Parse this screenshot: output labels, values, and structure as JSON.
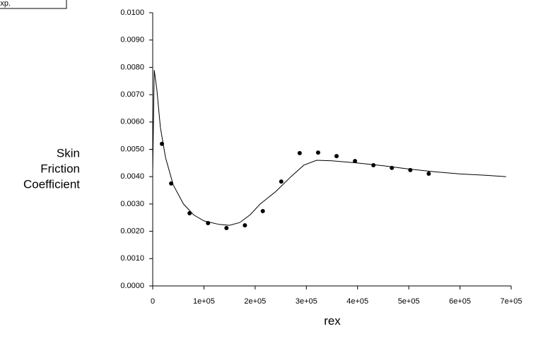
{
  "chart_data": {
    "type": "scatter",
    "xlabel": "rex",
    "ylabel": [
      "Skin",
      "Friction",
      "Coefficient"
    ],
    "xlim": [
      0,
      700000
    ],
    "ylim": [
      0,
      0.01
    ],
    "xticks": [
      0,
      {
        "value": 100000,
        "label": "1e+05"
      },
      {
        "value": 200000,
        "label": "2e+05"
      },
      {
        "value": 300000,
        "label": "3e+05"
      },
      {
        "value": 400000,
        "label": "4e+05"
      },
      {
        "value": 500000,
        "label": "5e+05"
      },
      {
        "value": 600000,
        "label": "6e+05"
      },
      {
        "value": 700000,
        "label": "7e+05"
      }
    ],
    "yticks": [
      {
        "value": 0,
        "label": "0.0000"
      },
      {
        "value": 0.001,
        "label": "0.0010"
      },
      {
        "value": 0.002,
        "label": "0.0020"
      },
      {
        "value": 0.003,
        "label": "0.0030"
      },
      {
        "value": 0.004,
        "label": "0.0040"
      },
      {
        "value": 0.005,
        "label": "0.0050"
      },
      {
        "value": 0.006,
        "label": "0.0060"
      },
      {
        "value": 0.007,
        "label": "0.0070"
      },
      {
        "value": 0.008,
        "label": "0.0080"
      },
      {
        "value": 0.009,
        "label": "0.0090"
      },
      {
        "value": 0.01,
        "label": "0.0100"
      }
    ],
    "series": [
      {
        "name": "Exp.",
        "style": "marker",
        "color": "#000000",
        "x": [
          18000,
          36000,
          72000,
          108000,
          144000,
          180000,
          215000,
          251000,
          287000,
          323000,
          359000,
          395000,
          431000,
          467000,
          503000,
          539000
        ],
        "values": [
          0.0052,
          0.00375,
          0.00266,
          0.0023,
          0.00212,
          0.00222,
          0.00274,
          0.00382,
          0.00486,
          0.00488,
          0.00475,
          0.00457,
          0.00442,
          0.00432,
          0.00424,
          0.00411
        ]
      },
      {
        "style": "line",
        "color": "#000000",
        "x": [
          0,
          3000,
          8000,
          15000,
          25000,
          40000,
          60000,
          80000,
          100000,
          130000,
          150000,
          170000,
          190000,
          210000,
          240000,
          270000,
          295000,
          320000,
          350000,
          400000,
          450000,
          500000,
          550000,
          600000,
          650000,
          690000
        ],
        "values": [
          0.0042,
          0.0079,
          0.0072,
          0.0058,
          0.0047,
          0.0037,
          0.003,
          0.0026,
          0.00238,
          0.00225,
          0.00222,
          0.00232,
          0.0026,
          0.003,
          0.00345,
          0.004,
          0.00442,
          0.0046,
          0.00458,
          0.0045,
          0.0044,
          0.00428,
          0.00418,
          0.0041,
          0.00405,
          0.004
        ]
      }
    ]
  }
}
